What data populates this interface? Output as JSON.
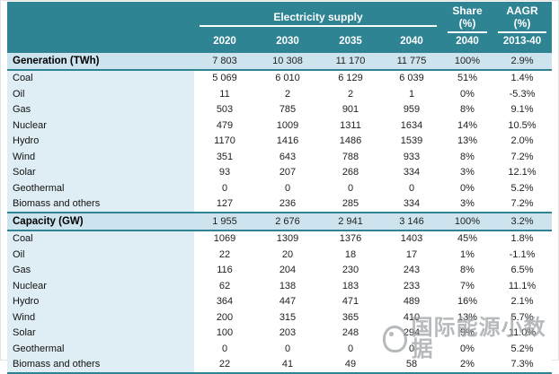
{
  "table": {
    "title": "Electricity supply",
    "share_header": "Share (%)",
    "aagr_header": "AAGR (%)",
    "years": [
      "2020",
      "2030",
      "2035",
      "2040"
    ],
    "share_year": "2040",
    "aagr_period": "2013-40"
  },
  "watermark": {
    "text": "国际能源小数据"
  },
  "colors": {
    "header_teal": "#2f8494",
    "border_teal": "#2f8494",
    "section_band": "#cde4ee",
    "label_cell": "#dfeef4",
    "watermark_gray": "#9aa0a3"
  },
  "chart_data": {
    "type": "table",
    "title": "Electricity supply",
    "columns": [
      "",
      "2020",
      "2030",
      "2035",
      "2040",
      "Share (%) 2040",
      "AAGR (%) 2013-40"
    ],
    "sections": [
      {
        "label": "Generation (TWh)",
        "values": [
          "7 803",
          "10 308",
          "11 170",
          "11 775",
          "100%",
          "2.9%"
        ],
        "rows": [
          {
            "label": "Coal",
            "values": [
              "5 069",
              "6 010",
              "6 129",
              "6 039",
              "51%",
              "1.4%"
            ]
          },
          {
            "label": "Oil",
            "values": [
              "11",
              "2",
              "2",
              "1",
              "0%",
              "-5.3%"
            ]
          },
          {
            "label": "Gas",
            "values": [
              "503",
              "785",
              "901",
              "959",
              "8%",
              "9.1%"
            ]
          },
          {
            "label": "Nuclear",
            "values": [
              "479",
              "1009",
              "1311",
              "1634",
              "14%",
              "10.5%"
            ]
          },
          {
            "label": "Hydro",
            "values": [
              "1170",
              "1416",
              "1486",
              "1539",
              "13%",
              "2.0%"
            ]
          },
          {
            "label": "Wind",
            "values": [
              "351",
              "643",
              "788",
              "933",
              "8%",
              "7.2%"
            ]
          },
          {
            "label": "Solar",
            "values": [
              "93",
              "207",
              "268",
              "334",
              "3%",
              "12.1%"
            ]
          },
          {
            "label": "Geothermal",
            "values": [
              "0",
              "0",
              "0",
              "0",
              "0%",
              "5.2%"
            ]
          },
          {
            "label": "Biomass and others",
            "values": [
              "127",
              "236",
              "285",
              "334",
              "3%",
              "7.2%"
            ]
          }
        ]
      },
      {
        "label": "Capacity (GW)",
        "values": [
          "1 955",
          "2 676",
          "2 941",
          "3 146",
          "100%",
          "3.2%"
        ],
        "rows": [
          {
            "label": "Coal",
            "values": [
              "1069",
              "1309",
              "1376",
              "1403",
              "45%",
              "1.8%"
            ]
          },
          {
            "label": "Oil",
            "values": [
              "22",
              "20",
              "18",
              "17",
              "1%",
              "-1.1%"
            ]
          },
          {
            "label": "Gas",
            "values": [
              "116",
              "204",
              "230",
              "243",
              "8%",
              "6.5%"
            ]
          },
          {
            "label": "Nuclear",
            "values": [
              "62",
              "138",
              "183",
              "233",
              "7%",
              "11.1%"
            ]
          },
          {
            "label": "Hydro",
            "values": [
              "364",
              "447",
              "471",
              "489",
              "16%",
              "2.1%"
            ]
          },
          {
            "label": "Wind",
            "values": [
              "200",
              "315",
              "365",
              "410",
              "13%",
              "5.7%"
            ]
          },
          {
            "label": "Solar",
            "values": [
              "100",
              "203",
              "248",
              "294",
              "9%",
              "11.0%"
            ]
          },
          {
            "label": "Geothermal",
            "values": [
              "0",
              "0",
              "0",
              "0",
              "0%",
              "5.2%"
            ]
          },
          {
            "label": "Biomass and others",
            "values": [
              "22",
              "41",
              "49",
              "58",
              "2%",
              "7.3%"
            ]
          }
        ]
      }
    ]
  }
}
